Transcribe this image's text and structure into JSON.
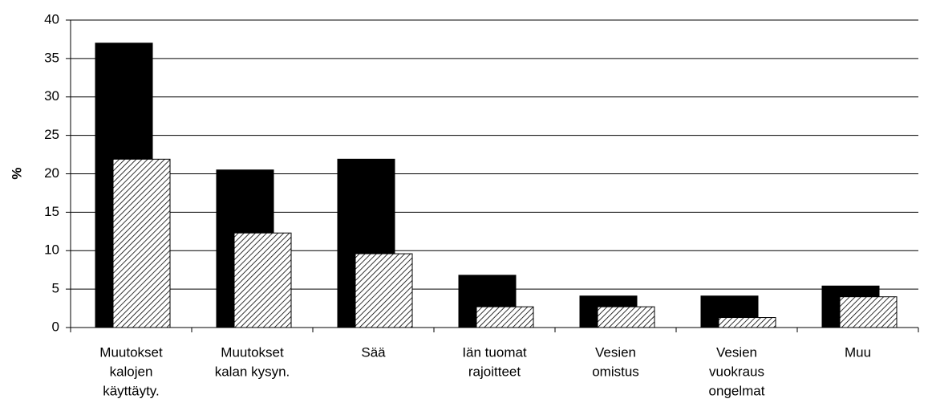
{
  "chart_data": {
    "type": "bar",
    "y_label": "%",
    "categories": [
      [
        "Muutokset",
        "kalojen",
        "käyttäyty."
      ],
      [
        "Muutokset",
        "kalan kysyn."
      ],
      [
        "Sää"
      ],
      [
        "Iän tuomat",
        "rajoitteet"
      ],
      [
        "Vesien",
        "omistus"
      ],
      [
        "Vesien",
        "vuokraus",
        "ongelmat"
      ],
      [
        "Muu"
      ]
    ],
    "series": [
      {
        "color": "#000000",
        "hatch": false,
        "values": [
          37,
          20.5,
          21.9,
          6.8,
          4.1,
          4.1,
          5.4
        ]
      },
      {
        "color": "#000000",
        "hatch": true,
        "values": [
          21.9,
          12.3,
          9.6,
          2.7,
          2.7,
          1.3,
          4.0
        ]
      }
    ],
    "ylim": [
      0,
      40
    ],
    "yticks": [
      0,
      5,
      10,
      15,
      20,
      25,
      30,
      35,
      40
    ],
    "grid": true
  }
}
